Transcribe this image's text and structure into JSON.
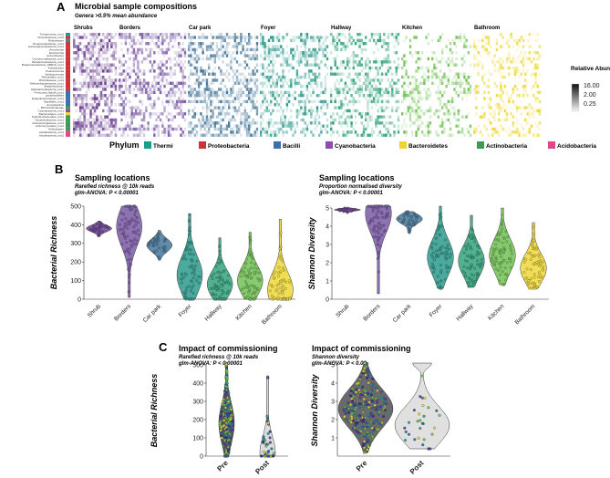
{
  "colors": {
    "phyla": {
      "Thermi": "#1a9e8a",
      "Proteobacteria": "#d0303a",
      "Bacilli": "#3a6fb0",
      "Cyanobacteria": "#8e4bb3",
      "Bacteroidetes": "#f2d22e",
      "Actinobacteria": "#3c9a55",
      "Acidobacteria": "#e0478a"
    },
    "locations": {
      "Shrubs": "#6a3f8f",
      "Borders": "#7a5aa6",
      "Car park": "#46779a",
      "Foyer": "#2c9a8c",
      "Hallway": "#33a37e",
      "Kitchen": "#72c255",
      "Bathroom": "#efd838"
    }
  },
  "panels": {
    "a": {
      "letter": "A",
      "title": "Microbial sample compositions",
      "subtitle": "Genera >0.5% mean abundance"
    },
    "b": {
      "letter": "B"
    },
    "c": {
      "letter": "C"
    }
  },
  "chart_data": [
    {
      "type": "heatmap",
      "title": "Microbial sample compositions",
      "subtitle": "Genera >0.5% mean abundance",
      "columns": [
        "Shrubs",
        "Borders",
        "Car park",
        "Foyer",
        "Hallway",
        "Kitchen",
        "Bathroom"
      ],
      "rows": [
        "Truepenovae_unc1",
        "Proteobacteria_unc2",
        "Rubrobacter",
        "Oceanicaulobacter_unc1",
        "Gammaproteobacteria_unc1",
        "Aeromonas",
        "Escherichia",
        "Acinetobacter",
        "Comamonadaceae_unc1",
        "Betaproteobacteria_unc1",
        "Betaproteobacteria_SBR10_unc1",
        "Kaistobacter",
        "Pseudomonas",
        "Sphingomonas",
        "Rhizobiales_unc1",
        "Rhizobiaceae_unc1",
        "Methylobacteriaceae_unc1",
        "Bradyrhizobium",
        "Alphaproteobacteria_unc1",
        "Firmicutes_Bacilli_unc1",
        "Lactobacillales",
        "Exiguobacteraceae_unc1",
        "Bacillales_unc1",
        "Anoxybacillus",
        "Microbacteriaceae",
        "Cyanobacteria_unc1",
        "Bacteroidetes_unc1",
        "Solirubrobacterales_unc1",
        "Nocardioidaceae_unc1",
        "Intrasporangiaceae_unc1",
        "Actinomycetales_unc1",
        "Arthrobacter",
        "Acidobacteria_unc1",
        "Acidobacteria_unc2"
      ],
      "row_phyla": [
        "Thermi",
        "Proteobacteria",
        "Thermi",
        "Proteobacteria",
        "Proteobacteria",
        "Proteobacteria",
        "Proteobacteria",
        "Proteobacteria",
        "Proteobacteria",
        "Proteobacteria",
        "Proteobacteria",
        "Proteobacteria",
        "Proteobacteria",
        "Proteobacteria",
        "Proteobacteria",
        "Proteobacteria",
        "Proteobacteria",
        "Proteobacteria",
        "Proteobacteria",
        "Bacilli",
        "Bacilli",
        "Bacilli",
        "Bacilli",
        "Bacilli",
        "Actinobacteria",
        "Cyanobacteria",
        "Bacteroidetes",
        "Actinobacteria",
        "Actinobacteria",
        "Actinobacteria",
        "Actinobacteria",
        "Actinobacteria",
        "Acidobacteria",
        "Acidobacteria"
      ],
      "legend_title": "Relative Abundance",
      "legend_ticks": [
        "16.00",
        "2.00",
        "0.25"
      ],
      "phylum_legend_title": "Phylum",
      "phyla": [
        "Thermi",
        "Proteobacteria",
        "Bacilli",
        "Cyanobacteria",
        "Bacteroidetes",
        "Actinobacteria",
        "Acidobacteria"
      ]
    },
    {
      "type": "violin",
      "title": "Sampling locations",
      "subtitle": "Rarefied richness @ 10k reads",
      "stat": "glm-ANOVA: P < 0.00001",
      "ylabel": "Bacterial Richness",
      "ylim": [
        0,
        500
      ],
      "yticks": [
        0,
        100,
        200,
        300,
        400,
        500
      ],
      "categories": [
        "Shrub",
        "Borders",
        "Car park",
        "Foyer",
        "Hallway",
        "Kitchen",
        "Bathroom"
      ],
      "medians": [
        380,
        390,
        290,
        130,
        80,
        100,
        50
      ],
      "ranges": [
        [
          340,
          420
        ],
        [
          10,
          500
        ],
        [
          210,
          370
        ],
        [
          0,
          460
        ],
        [
          0,
          330
        ],
        [
          0,
          360
        ],
        [
          0,
          430
        ]
      ]
    },
    {
      "type": "violin",
      "title": "Sampling locations",
      "subtitle": "Proportion normalised diversity",
      "stat": "glm-ANOVA: P < 0.00001",
      "ylabel": "Shannon Diversity",
      "ylim": [
        0,
        5
      ],
      "yticks": [
        0,
        1,
        2,
        3,
        4,
        5
      ],
      "categories": [
        "Shrub",
        "Borders",
        "Car park",
        "Foyer",
        "Hallway",
        "Kitchen",
        "Bathroom"
      ],
      "medians": [
        4.9,
        4.7,
        4.4,
        2.3,
        2.1,
        2.4,
        1.7
      ],
      "ranges": [
        [
          4.7,
          5.0
        ],
        [
          0.3,
          5.1
        ],
        [
          3.6,
          4.8
        ],
        [
          0.6,
          5.1
        ],
        [
          0.7,
          4.6
        ],
        [
          0.8,
          5.0
        ],
        [
          0.6,
          4.2
        ]
      ]
    },
    {
      "type": "violin",
      "title": "Impact of commissioning",
      "subtitle": "Rarefied richness @ 10k reads",
      "stat": "glm-ANOVA: P < 0.00001",
      "ylabel": "Bacterial Richness",
      "ylim": [
        0,
        500
      ],
      "yticks": [
        0,
        100,
        200,
        300,
        400,
        500
      ],
      "categories": [
        "Pre",
        "Post"
      ],
      "medians": [
        180,
        15
      ],
      "ranges": [
        [
          0,
          510
        ],
        [
          0,
          440
        ]
      ]
    },
    {
      "type": "violin",
      "title": "Impact of commissioning",
      "subtitle": "Shannon diversity",
      "stat": "glm-ANOVA: P < 0.02",
      "ylabel": "Shannon Diversity",
      "ylim": [
        0,
        5
      ],
      "yticks": [
        1,
        2,
        3,
        4,
        5
      ],
      "categories": [
        "Pre",
        "Post"
      ],
      "medians": [
        2.6,
        1.7
      ],
      "ranges": [
        [
          0.2,
          5.1
        ],
        [
          0.4,
          5.1
        ]
      ]
    }
  ]
}
